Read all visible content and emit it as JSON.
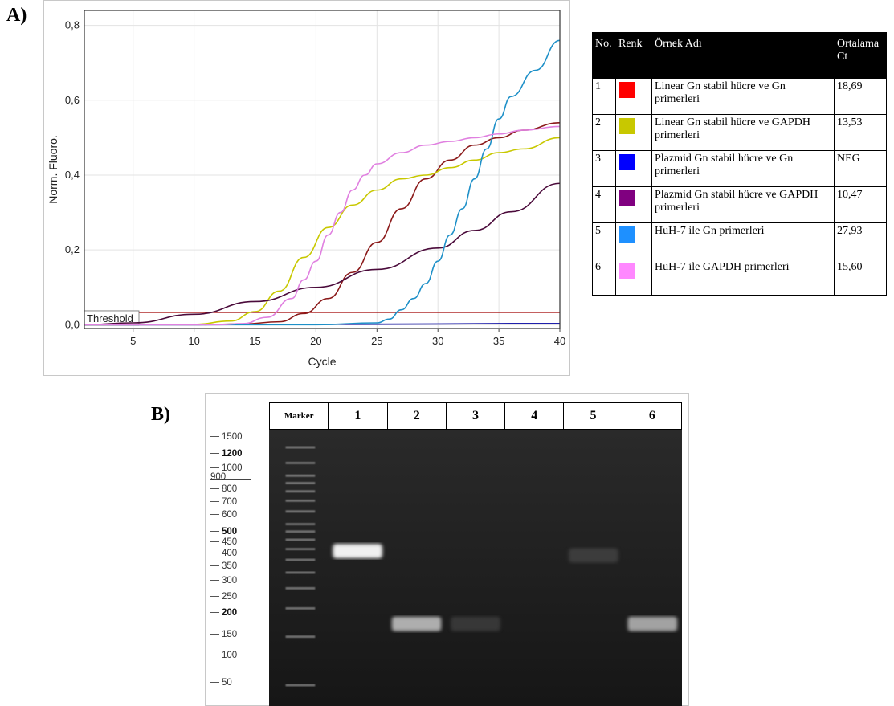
{
  "panel_a_label": "A)",
  "panel_b_label": "B)",
  "chart_data": {
    "type": "line",
    "title": "",
    "xlabel": "Cycle",
    "ylabel": "Norm. Fluoro.",
    "xlim": [
      1,
      40
    ],
    "ylim": [
      -0.01,
      0.84
    ],
    "x_ticks": [
      5,
      10,
      15,
      20,
      25,
      30,
      35,
      40
    ],
    "y_ticks": [
      0.0,
      0.2,
      0.4,
      0.6,
      0.8
    ],
    "y_tick_labels": [
      "0,0",
      "0,2",
      "0,4",
      "0,6",
      "0,8"
    ],
    "x_tick_labels": [
      "5",
      "10",
      "15",
      "20",
      "25",
      "30",
      "35",
      "40"
    ],
    "grid": true,
    "threshold": {
      "label": "Threshold",
      "value": 0.033,
      "color": "#a00000"
    },
    "series": [
      {
        "color": "#8b1a1a",
        "x": [
          1,
          10,
          14,
          17,
          19,
          21,
          23,
          25,
          27,
          29,
          31,
          33,
          35,
          37,
          40
        ],
        "y": [
          0.0,
          0.0,
          0.002,
          0.008,
          0.03,
          0.07,
          0.14,
          0.22,
          0.31,
          0.39,
          0.44,
          0.48,
          0.5,
          0.52,
          0.54
        ]
      },
      {
        "color": "#c8c800",
        "x": [
          1,
          10,
          13,
          15,
          17,
          19,
          21,
          23,
          25,
          27,
          29,
          31,
          33,
          35,
          37,
          40
        ],
        "y": [
          0.0,
          0.001,
          0.01,
          0.035,
          0.09,
          0.18,
          0.26,
          0.32,
          0.36,
          0.39,
          0.4,
          0.42,
          0.44,
          0.46,
          0.47,
          0.5
        ]
      },
      {
        "color": "#0000a0",
        "x": [
          1,
          10,
          20,
          30,
          36,
          40
        ],
        "y": [
          0.0,
          0.0,
          0.001,
          0.002,
          0.003,
          0.003
        ]
      },
      {
        "color": "#4b0b3b",
        "x": [
          1,
          5,
          10,
          15,
          20,
          25,
          30,
          33,
          36,
          40
        ],
        "y": [
          0.0,
          0.005,
          0.028,
          0.062,
          0.1,
          0.148,
          0.205,
          0.252,
          0.302,
          0.378
        ]
      },
      {
        "color": "#1e90c8",
        "x": [
          1,
          20,
          25,
          26,
          27,
          28,
          29,
          30,
          31,
          32,
          33,
          34,
          35,
          36,
          38,
          40
        ],
        "y": [
          0.0,
          0.0,
          0.005,
          0.015,
          0.04,
          0.07,
          0.11,
          0.17,
          0.24,
          0.31,
          0.39,
          0.47,
          0.55,
          0.61,
          0.68,
          0.76
        ]
      },
      {
        "color": "#e080e0",
        "x": [
          1,
          12,
          14,
          16,
          18,
          19,
          20,
          21,
          22,
          23,
          24,
          25,
          27,
          29,
          31,
          33,
          35,
          37,
          40
        ],
        "y": [
          0.0,
          0.0,
          0.003,
          0.02,
          0.07,
          0.12,
          0.17,
          0.24,
          0.3,
          0.36,
          0.4,
          0.43,
          0.46,
          0.48,
          0.49,
          0.5,
          0.51,
          0.52,
          0.53
        ]
      }
    ]
  },
  "table": {
    "headers": [
      "No.",
      "Renk",
      "Örnek Adı",
      "Ortalama Ct"
    ],
    "rows": [
      {
        "no": "1",
        "color": "#ff0000",
        "name": "Linear Gn stabil hücre ve Gn primerleri",
        "ct": "18,69"
      },
      {
        "no": "2",
        "color": "#c8c800",
        "name": "Linear Gn stabil hücre ve GAPDH primerleri",
        "ct": "13,53"
      },
      {
        "no": "3",
        "color": "#0000ff",
        "name": "Plazmid Gn stabil hücre ve Gn primerleri",
        "ct": "NEG"
      },
      {
        "no": "4",
        "color": "#800080",
        "name": "Plazmid Gn stabil hücre ve GAPDH primerleri",
        "ct": "10,47"
      },
      {
        "no": "5",
        "color": "#1e90ff",
        "name": "HuH-7 ile Gn primerleri",
        "ct": "27,93"
      },
      {
        "no": "6",
        "color": "#ff88ff",
        "name": "HuH-7 ile GAPDH primerleri",
        "ct": "15,60"
      }
    ]
  },
  "gel": {
    "lane_headers": [
      "Marker",
      "1",
      "2",
      "3",
      "4",
      "5",
      "6"
    ],
    "ladder": [
      {
        "label": "1500",
        "bold": false
      },
      {
        "label": "1200",
        "bold": true
      },
      {
        "label": "1000",
        "bold": false
      },
      {
        "label": "800",
        "bold": false
      },
      {
        "label": "700",
        "bold": false
      },
      {
        "label": "600",
        "bold": false
      },
      {
        "label": "500",
        "bold": true
      },
      {
        "label": "450",
        "bold": false
      },
      {
        "label": "400",
        "bold": false
      },
      {
        "label": "350",
        "bold": false
      },
      {
        "label": "300",
        "bold": false
      },
      {
        "label": "250",
        "bold": false
      },
      {
        "label": "200",
        "bold": true
      },
      {
        "label": "150",
        "bold": false
      },
      {
        "label": "100",
        "bold": false
      },
      {
        "label": "50",
        "bold": false
      }
    ],
    "ladder_900_label": "900",
    "bands": [
      {
        "lane": "1",
        "size_bp": 340,
        "intensity": 0.95
      },
      {
        "lane": "2",
        "size_bp": 120,
        "intensity": 0.7
      },
      {
        "lane": "3",
        "size_bp": 120,
        "intensity": 0.08
      },
      {
        "lane": "5",
        "size_bp": 320,
        "intensity": 0.1
      },
      {
        "lane": "6",
        "size_bp": 120,
        "intensity": 0.65
      }
    ]
  }
}
